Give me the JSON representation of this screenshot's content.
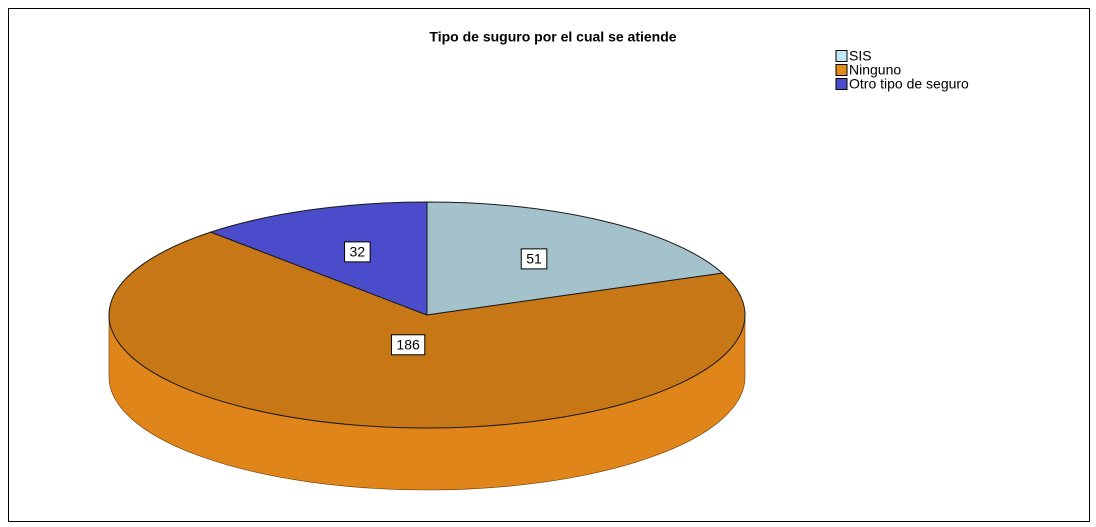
{
  "chart_data": {
    "type": "pie",
    "title": "Tipo de suguro por el cual se atiende",
    "categories": [
      "SIS",
      "Ninguno",
      "Otro tipo de seguro"
    ],
    "values": [
      51,
      186,
      32
    ],
    "colors": [
      "#a3c2cc",
      "#c87716",
      "#4a4ccc"
    ],
    "legend_colors": [
      "#bfe9f7",
      "#e38b1c",
      "#4a4ccc"
    ],
    "legend": "top-right"
  }
}
